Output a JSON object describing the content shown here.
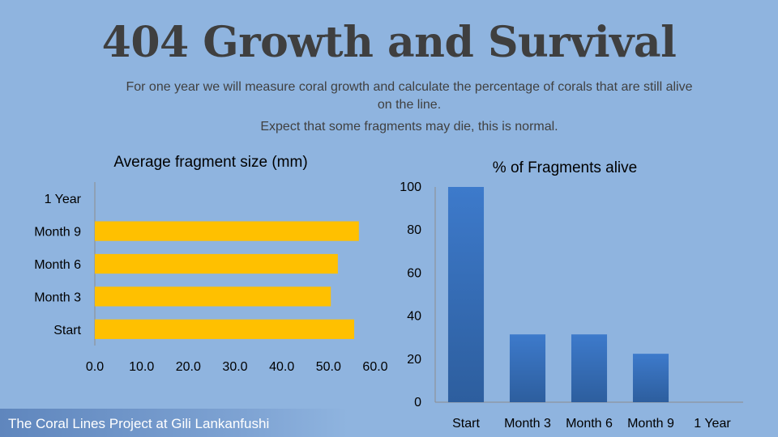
{
  "slide": {
    "title": "404 Growth and Survival",
    "description": "For one year we will measure coral growth and calculate the percentage of corals that are still alive on the line.",
    "note": "Expect that some fragments may die, this is normal.",
    "footer": "The Coral Lines Project at Gili Lankanfushi"
  },
  "colors": {
    "background": "#8fb4df",
    "bar_gold": "#ffc000",
    "bar_blue": "#3a73bf"
  },
  "chart_data": [
    {
      "type": "bar",
      "orientation": "horizontal",
      "title": "Average fragment size (mm)",
      "categories": [
        "Start",
        "Month 3",
        "Month 6",
        "Month 9",
        "1 Year"
      ],
      "values": [
        55.5,
        50.5,
        52,
        56.5,
        null
      ],
      "xlim": [
        0,
        60
      ],
      "ticks": [
        "0.0",
        "10.0",
        "20.0",
        "30.0",
        "40.0",
        "50.0",
        "60.0"
      ],
      "grid": false,
      "legend": "none"
    },
    {
      "type": "bar",
      "orientation": "vertical",
      "title": "% of Fragments alive",
      "categories": [
        "Start",
        "Month 3",
        "Month 6",
        "Month 9",
        "1 Year"
      ],
      "values": [
        100,
        31.5,
        31.5,
        22.5,
        null
      ],
      "ylim": [
        0,
        100
      ],
      "ticks": [
        "0",
        "20",
        "40",
        "60",
        "80",
        "100"
      ],
      "grid": false,
      "legend": "none"
    }
  ]
}
